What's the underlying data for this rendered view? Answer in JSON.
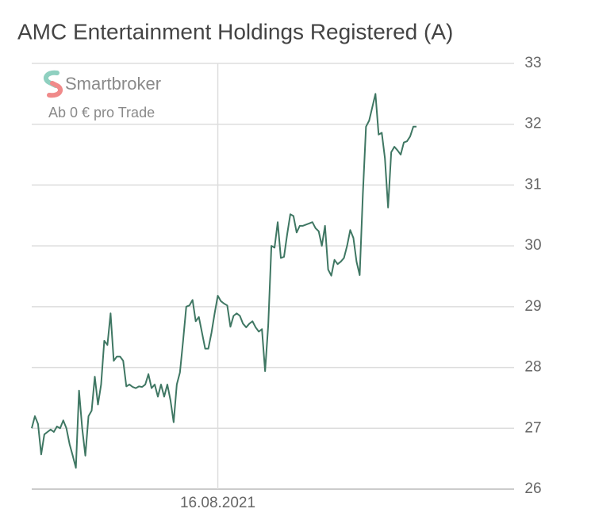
{
  "chart_data": {
    "type": "line",
    "title": "AMC Entertainment Holdings Registered (A)",
    "watermark": {
      "brand": "Smartbroker",
      "tagline": "Ab 0 € pro Trade"
    },
    "categories": [
      null,
      null,
      null,
      null,
      null,
      null,
      null,
      null,
      null,
      null,
      null,
      null,
      null,
      null,
      null,
      null,
      null,
      null,
      null,
      null,
      null,
      null,
      null,
      null,
      null,
      null,
      null,
      null,
      null,
      null,
      null,
      null,
      null,
      null,
      null,
      null,
      null,
      null,
      null,
      null,
      null,
      null,
      null,
      null,
      null,
      null,
      null,
      null,
      null,
      null,
      null,
      null,
      null,
      null,
      null,
      null,
      null,
      null,
      null,
      "16.08.2021",
      null,
      null,
      null,
      null,
      null,
      null,
      null,
      null,
      null,
      null,
      null,
      null,
      null,
      null,
      null,
      null,
      null,
      null,
      null,
      null,
      null,
      null,
      null,
      null,
      null,
      null,
      null,
      null,
      null,
      null,
      null,
      null,
      null,
      null,
      null,
      null,
      null,
      null,
      null,
      null,
      null,
      null,
      null,
      null,
      null,
      null,
      null,
      null,
      null,
      null,
      null,
      null,
      null,
      null,
      null,
      null,
      null,
      null,
      null,
      null,
      null,
      null,
      null
    ],
    "values": [
      27.0,
      27.2,
      27.07,
      26.57,
      26.9,
      26.94,
      26.98,
      26.94,
      27.03,
      27.0,
      27.13,
      27.0,
      26.74,
      26.55,
      26.35,
      27.62,
      27.0,
      26.55,
      27.2,
      27.29,
      27.85,
      27.39,
      27.72,
      28.44,
      28.37,
      28.89,
      28.11,
      28.18,
      28.18,
      28.11,
      27.69,
      27.72,
      27.68,
      27.66,
      27.69,
      27.68,
      27.72,
      27.89,
      27.66,
      27.72,
      27.52,
      27.72,
      27.52,
      27.72,
      27.46,
      27.1,
      27.72,
      27.92,
      28.44,
      29.0,
      29.02,
      29.11,
      28.76,
      28.83,
      28.57,
      28.31,
      28.31,
      28.57,
      28.89,
      29.18,
      29.09,
      29.05,
      29.02,
      28.67,
      28.85,
      28.89,
      28.85,
      28.72,
      28.66,
      28.72,
      28.76,
      28.66,
      28.59,
      28.63,
      27.94,
      28.7,
      30.0,
      29.97,
      30.39,
      29.8,
      29.82,
      30.19,
      30.52,
      30.49,
      30.22,
      30.33,
      30.33,
      30.35,
      30.37,
      30.39,
      30.29,
      30.24,
      30.0,
      30.33,
      29.61,
      29.51,
      29.77,
      29.7,
      29.74,
      29.8,
      30.0,
      30.26,
      30.13,
      29.74,
      29.52,
      30.85,
      31.96,
      32.06,
      32.28,
      32.5,
      31.83,
      31.86,
      31.44,
      30.63,
      31.54,
      31.63,
      31.57,
      31.5,
      31.7,
      31.72,
      31.8,
      31.96,
      31.96
    ],
    "color": "#3f7763",
    "ylim": [
      26,
      33
    ],
    "yticks": [
      26,
      27,
      28,
      29,
      30,
      31,
      32,
      33
    ],
    "grid": true
  }
}
